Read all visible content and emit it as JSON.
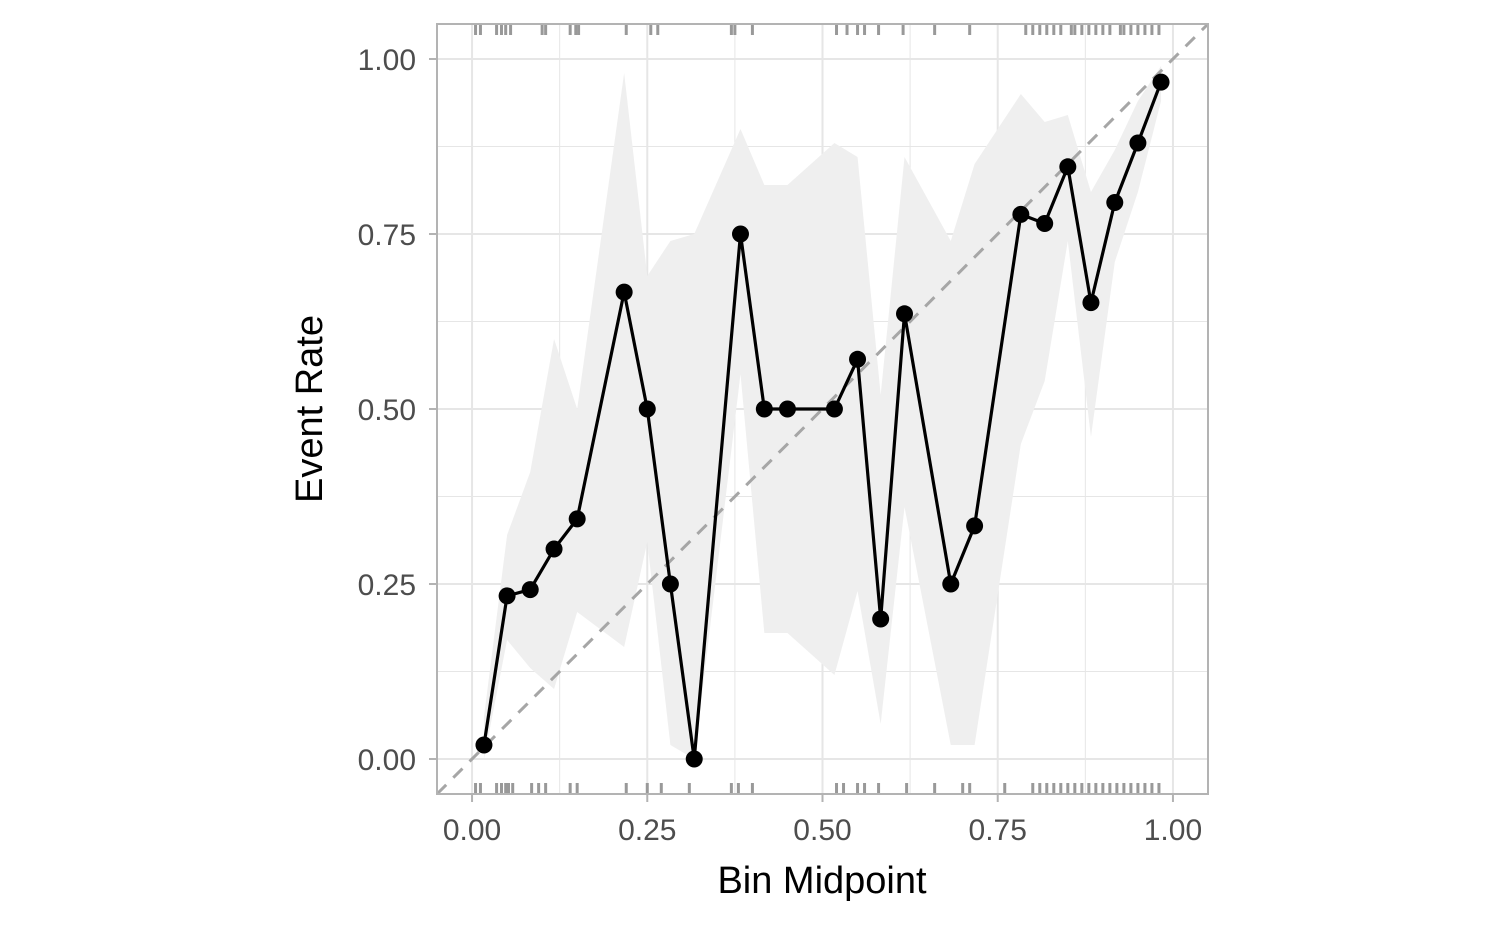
{
  "chart_data": {
    "type": "line",
    "xlabel": "Bin Midpoint",
    "ylabel": "Event Rate",
    "xlim": [
      -0.05,
      1.05
    ],
    "ylim": [
      -0.05,
      1.05
    ],
    "xticks": [
      {
        "value": 0.0,
        "label": "0.00"
      },
      {
        "value": 0.25,
        "label": "0.25"
      },
      {
        "value": 0.5,
        "label": "0.50"
      },
      {
        "value": 0.75,
        "label": "0.75"
      },
      {
        "value": 1.0,
        "label": "1.00"
      }
    ],
    "yticks": [
      {
        "value": 0.0,
        "label": "0.00"
      },
      {
        "value": 0.25,
        "label": "0.25"
      },
      {
        "value": 0.5,
        "label": "0.50"
      },
      {
        "value": 0.75,
        "label": "0.75"
      },
      {
        "value": 1.0,
        "label": "1.00"
      }
    ],
    "grid": true,
    "reference_line": {
      "slope": 1,
      "intercept": 0,
      "style": "dashed",
      "color": "#a6a6a6"
    },
    "colors": {
      "line": "#000000",
      "points": "#000000",
      "ribbon": "#efefef",
      "grid": "#e6e6e6",
      "panel_border": "#b3b3b3",
      "rug": "#999999"
    },
    "series": [
      {
        "points": [
          {
            "x": 0.017,
            "y": 0.02,
            "lo": 0.0,
            "hi": 0.06
          },
          {
            "x": 0.05,
            "y": 0.233,
            "lo": 0.17,
            "hi": 0.32
          },
          {
            "x": 0.083,
            "y": 0.242,
            "lo": 0.13,
            "hi": 0.41
          },
          {
            "x": 0.117,
            "y": 0.3,
            "lo": 0.1,
            "hi": 0.6
          },
          {
            "x": 0.15,
            "y": 0.343,
            "lo": 0.21,
            "hi": 0.5
          },
          {
            "x": 0.217,
            "y": 0.667,
            "lo": 0.16,
            "hi": 0.98
          },
          {
            "x": 0.25,
            "y": 0.5,
            "lo": 0.31,
            "hi": 0.69
          },
          {
            "x": 0.283,
            "y": 0.25,
            "lo": 0.02,
            "hi": 0.74
          },
          {
            "x": 0.317,
            "y": 0.0,
            "lo": 0.0,
            "hi": 0.75
          },
          {
            "x": 0.383,
            "y": 0.75,
            "lo": 0.55,
            "hi": 0.9
          },
          {
            "x": 0.417,
            "y": 0.5,
            "lo": 0.18,
            "hi": 0.82
          },
          {
            "x": 0.45,
            "y": 0.5,
            "lo": 0.18,
            "hi": 0.82
          },
          {
            "x": 0.517,
            "y": 0.5,
            "lo": 0.12,
            "hi": 0.88
          },
          {
            "x": 0.55,
            "y": 0.571,
            "lo": 0.24,
            "hi": 0.86
          },
          {
            "x": 0.583,
            "y": 0.2,
            "lo": 0.05,
            "hi": 0.52
          },
          {
            "x": 0.617,
            "y": 0.636,
            "lo": 0.36,
            "hi": 0.86
          },
          {
            "x": 0.683,
            "y": 0.25,
            "lo": 0.02,
            "hi": 0.74
          },
          {
            "x": 0.717,
            "y": 0.333,
            "lo": 0.02,
            "hi": 0.85
          },
          {
            "x": 0.783,
            "y": 0.778,
            "lo": 0.45,
            "hi": 0.95
          },
          {
            "x": 0.817,
            "y": 0.765,
            "lo": 0.54,
            "hi": 0.91
          },
          {
            "x": 0.85,
            "y": 0.846,
            "lo": 0.74,
            "hi": 0.92
          },
          {
            "x": 0.883,
            "y": 0.652,
            "lo": 0.46,
            "hi": 0.81
          },
          {
            "x": 0.917,
            "y": 0.795,
            "lo": 0.71,
            "hi": 0.87
          },
          {
            "x": 0.95,
            "y": 0.88,
            "lo": 0.81,
            "hi": 0.94
          },
          {
            "x": 0.983,
            "y": 0.967,
            "lo": 0.94,
            "hi": 0.99
          }
        ]
      }
    ],
    "rug_top_x": [
      0.005,
      0.012,
      0.035,
      0.042,
      0.048,
      0.055,
      0.1,
      0.105,
      0.14,
      0.148,
      0.152,
      0.22,
      0.255,
      0.265,
      0.37,
      0.375,
      0.4,
      0.52,
      0.535,
      0.55,
      0.56,
      0.58,
      0.615,
      0.66,
      0.71,
      0.79,
      0.8,
      0.81,
      0.82,
      0.83,
      0.84,
      0.855,
      0.86,
      0.87,
      0.88,
      0.89,
      0.9,
      0.91,
      0.925,
      0.93,
      0.94,
      0.95,
      0.96,
      0.97,
      0.98
    ],
    "rug_bottom_x": [
      0.005,
      0.012,
      0.035,
      0.042,
      0.048,
      0.052,
      0.058,
      0.085,
      0.095,
      0.105,
      0.14,
      0.15,
      0.22,
      0.25,
      0.27,
      0.31,
      0.37,
      0.38,
      0.4,
      0.52,
      0.53,
      0.55,
      0.56,
      0.58,
      0.62,
      0.66,
      0.7,
      0.71,
      0.76,
      0.8,
      0.81,
      0.82,
      0.83,
      0.84,
      0.85,
      0.86,
      0.87,
      0.88,
      0.89,
      0.9,
      0.91,
      0.92,
      0.93,
      0.94,
      0.95,
      0.96,
      0.97,
      0.98
    ]
  }
}
